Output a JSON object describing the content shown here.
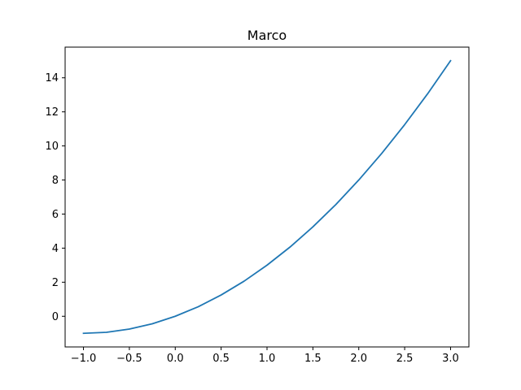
{
  "chart_data": {
    "type": "line",
    "title": "Marco",
    "xlabel": "",
    "ylabel": "",
    "xlim": [
      -1.2,
      3.2
    ],
    "ylim": [
      -1.8,
      15.8
    ],
    "grid": false,
    "x_ticks": [
      -1.0,
      -0.5,
      0.0,
      0.5,
      1.0,
      1.5,
      2.0,
      2.5,
      3.0
    ],
    "x_tick_labels": [
      "−1.0",
      "−0.5",
      "0.0",
      "0.5",
      "1.0",
      "1.5",
      "2.0",
      "2.5",
      "3.0"
    ],
    "y_ticks": [
      0,
      2,
      4,
      6,
      8,
      10,
      12,
      14
    ],
    "y_tick_labels": [
      "0",
      "2",
      "4",
      "6",
      "8",
      "10",
      "12",
      "14"
    ],
    "series": [
      {
        "color": "#1f77b4",
        "x": [
          -1.0,
          -0.75,
          -0.5,
          -0.25,
          0.0,
          0.25,
          0.5,
          0.75,
          1.0,
          1.25,
          1.5,
          1.75,
          2.0,
          2.25,
          2.5,
          2.75,
          3.0
        ],
        "y": [
          -1.0,
          -0.94,
          -0.75,
          -0.44,
          0.0,
          0.56,
          1.25,
          2.06,
          3.0,
          4.06,
          5.25,
          6.56,
          8.0,
          9.56,
          11.25,
          13.06,
          15.0
        ]
      }
    ]
  }
}
